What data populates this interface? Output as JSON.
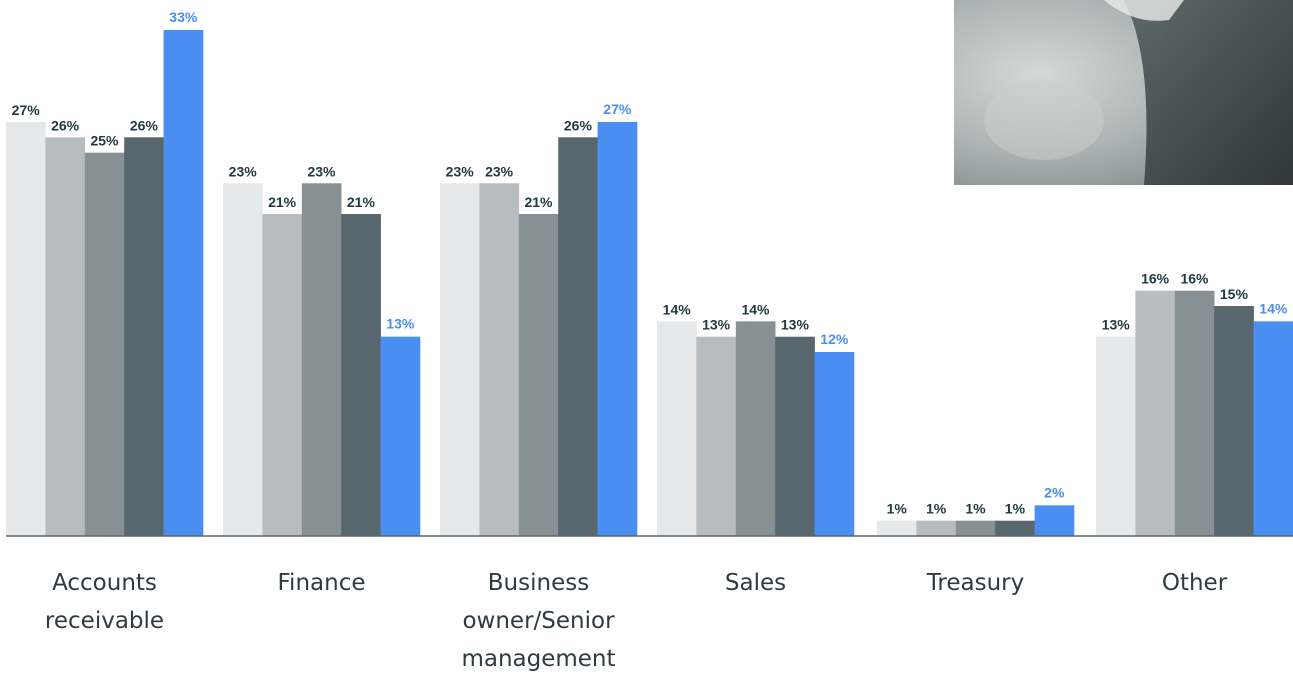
{
  "chart_data": {
    "type": "bar",
    "categories": [
      "Accounts receivable",
      "Finance",
      "Business owner/Senior management",
      "Sales",
      "Treasury",
      "Other"
    ],
    "category_lines": [
      [
        "Accounts",
        "receivable"
      ],
      [
        "Finance"
      ],
      [
        "Business",
        "owner/Senior",
        "management"
      ],
      [
        "Sales"
      ],
      [
        "Treasury"
      ],
      [
        "Other"
      ]
    ],
    "series": [
      {
        "values": [
          27,
          23,
          23,
          14,
          1,
          13
        ],
        "color": "#e7e8e9"
      },
      {
        "values": [
          26,
          21,
          23,
          13,
          1,
          16
        ],
        "color": "#b6bcbf"
      },
      {
        "values": [
          25,
          23,
          21,
          14,
          1,
          16
        ],
        "color": "#879195"
      },
      {
        "values": [
          26,
          21,
          26,
          13,
          1,
          15
        ],
        "color": "#58676d"
      },
      {
        "values": [
          33,
          13,
          27,
          12,
          2,
          14
        ],
        "color": "#4a8ef1"
      }
    ],
    "value_suffix": "%",
    "label_colors": {
      "default": "#1f3a3f",
      "highlight": "#4a8ef1"
    },
    "ylim": [
      0,
      33
    ],
    "legend": false,
    "grid": false
  },
  "decor": {
    "photo_colors": [
      "#3d4648",
      "#7e8989",
      "#b9c1c0",
      "#cfd6d4"
    ]
  }
}
